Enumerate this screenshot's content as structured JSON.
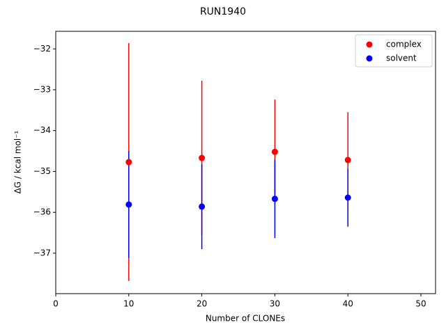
{
  "chart_data": {
    "type": "errorbar-scatter",
    "title": "RUN1940",
    "x_label": "Number of CLONEs",
    "y_label": "ΔG / kcal mol⁻¹",
    "x": [
      10,
      20,
      30,
      40
    ],
    "series": [
      {
        "name": "complex",
        "color": "#ff0000",
        "values": [
          -34.77,
          -34.67,
          -34.52,
          -34.72
        ],
        "errors": [
          2.91,
          1.89,
          1.28,
          1.17
        ]
      },
      {
        "name": "solvent",
        "color": "#0000ff",
        "values": [
          -35.81,
          -35.86,
          -35.67,
          -35.64
        ],
        "errors": [
          1.31,
          1.04,
          0.96,
          0.71
        ]
      }
    ],
    "xlim": [
      0,
      52
    ],
    "xticks": [
      0,
      10,
      20,
      30,
      40,
      50
    ],
    "ylim": [
      -37.99,
      -31.57
    ],
    "yticks": [
      {
        "value": -37,
        "label": "−37"
      },
      {
        "value": -36,
        "label": "−36"
      },
      {
        "value": -35,
        "label": "−35"
      },
      {
        "value": -34,
        "label": "−34"
      },
      {
        "value": -33,
        "label": "−33"
      },
      {
        "value": -32,
        "label": "−32"
      }
    ],
    "legend": "upper right"
  }
}
